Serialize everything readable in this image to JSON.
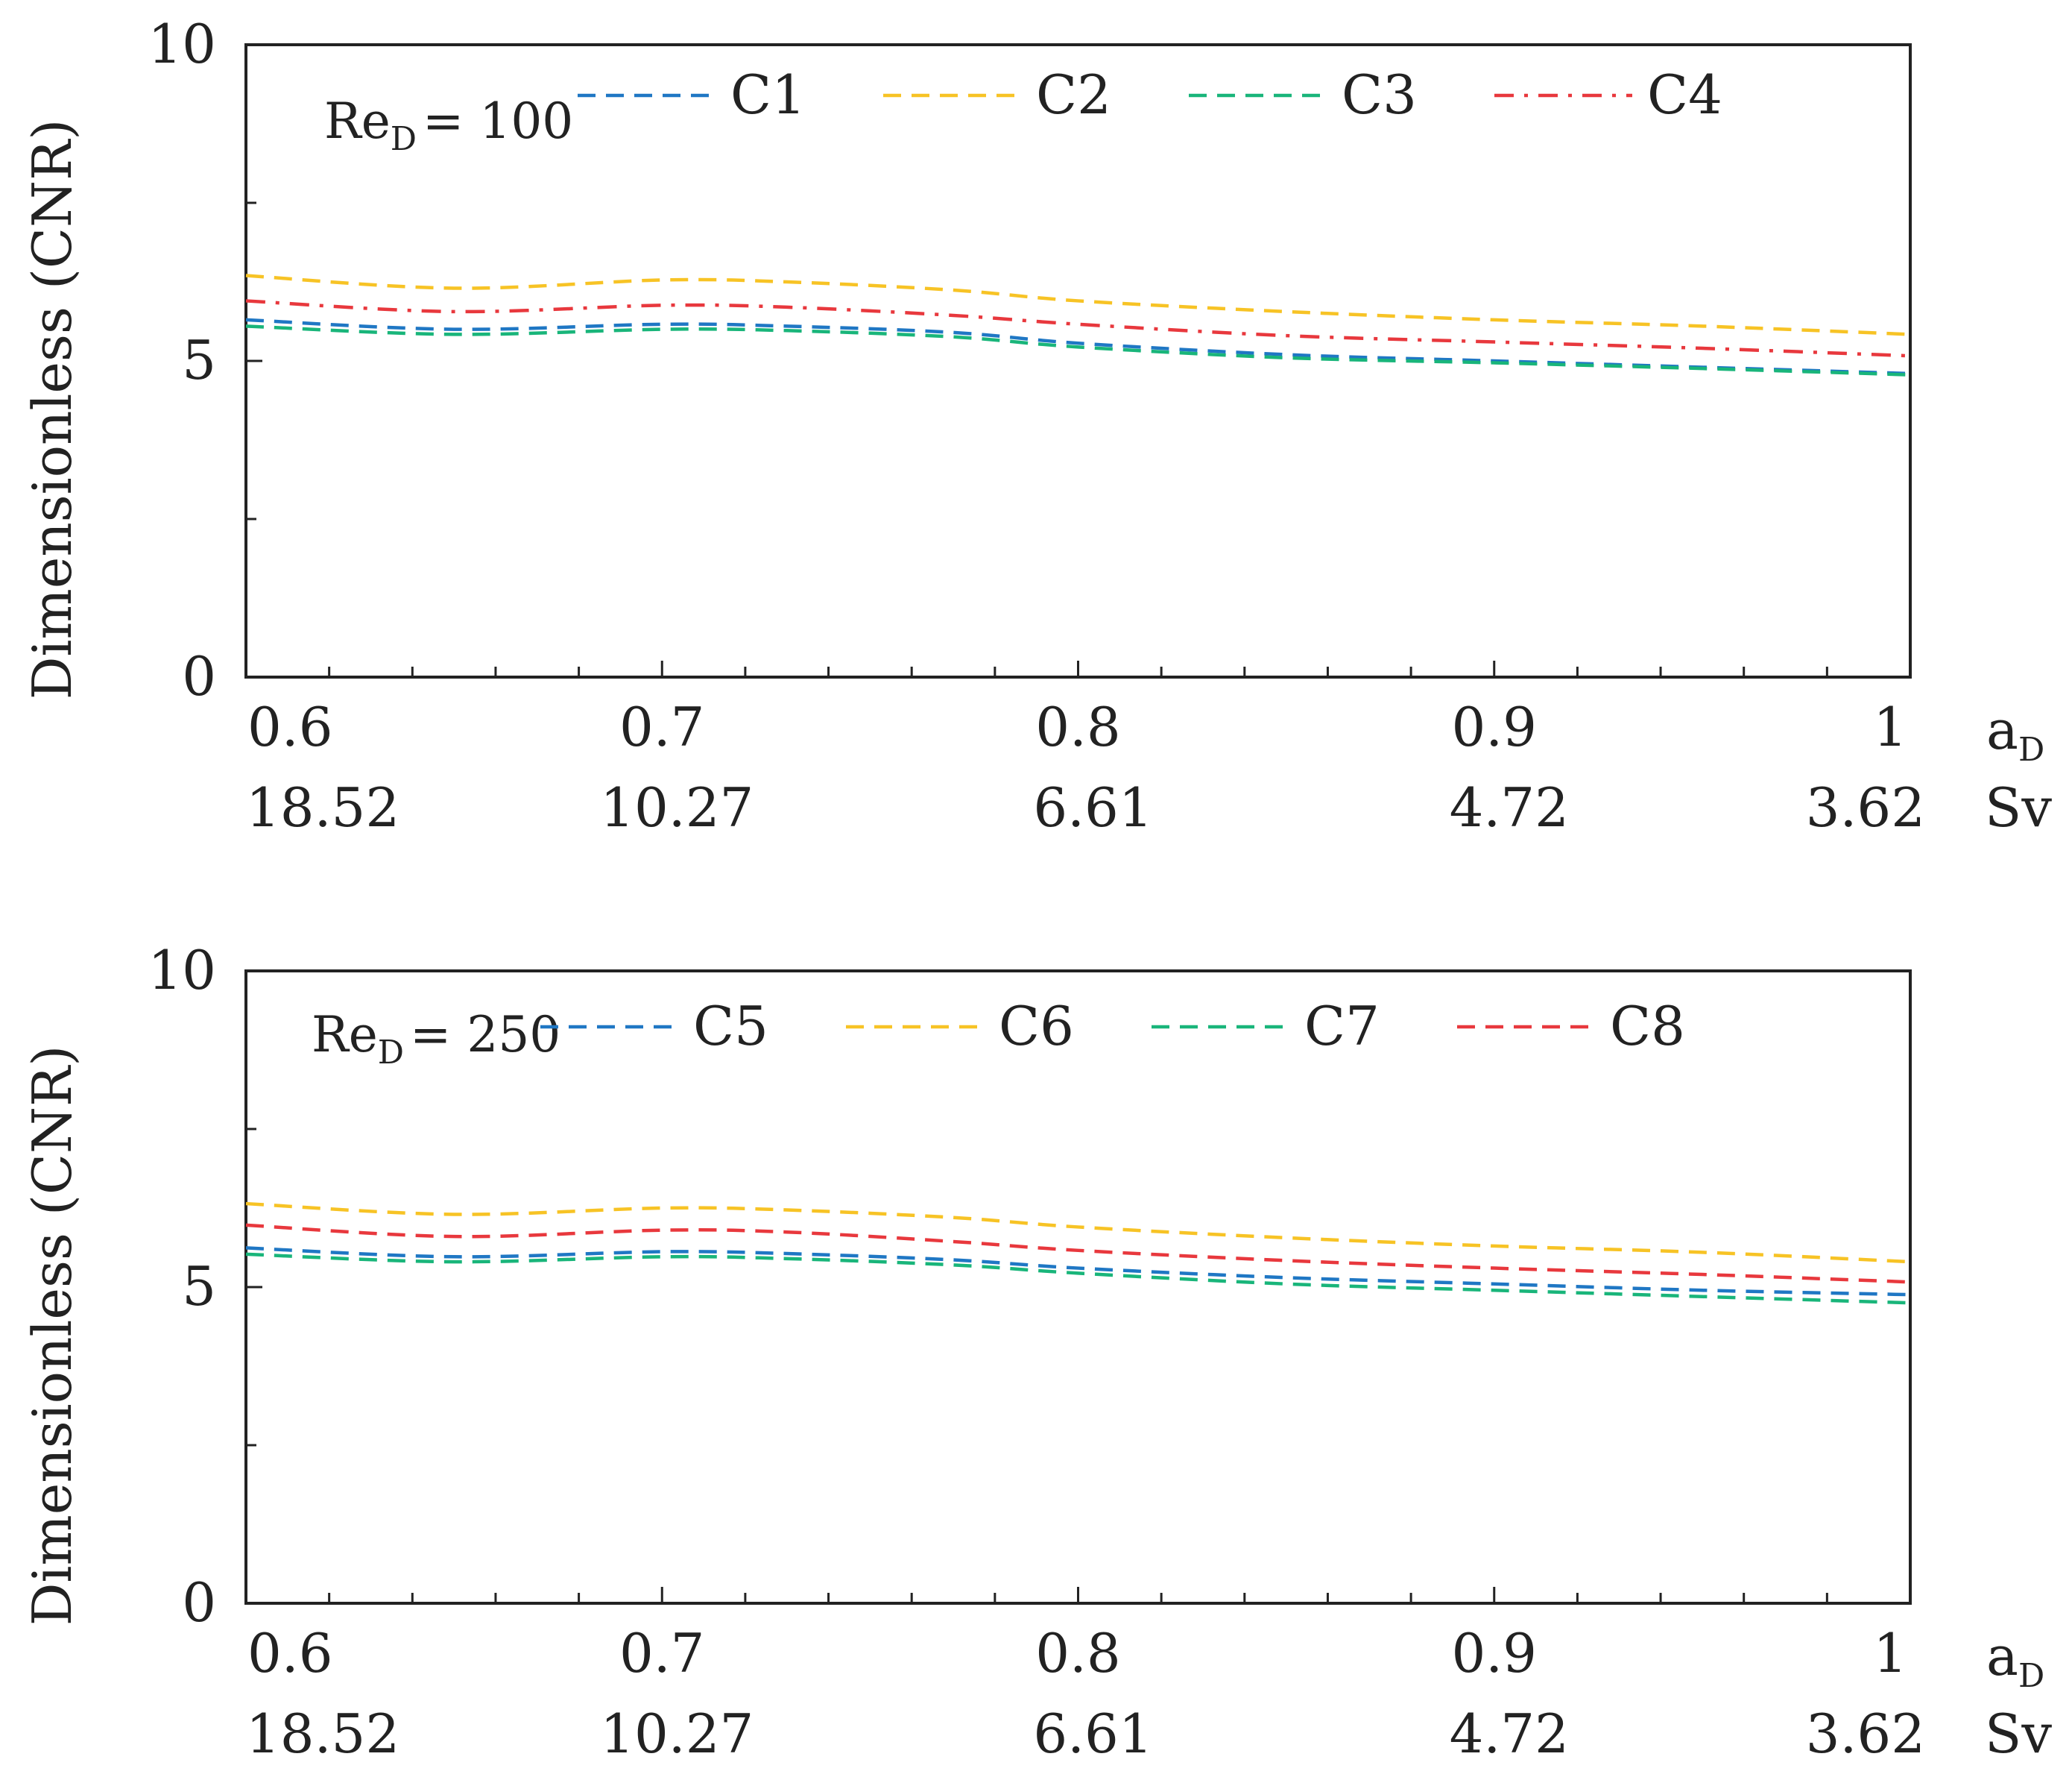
{
  "chart_data": [
    {
      "type": "line",
      "title": "",
      "annotation": {
        "base": "Re",
        "sub": "D",
        "value": "= 100"
      },
      "ylabel": "Dimensionless  (CNR)",
      "ylim": [
        0,
        10
      ],
      "yticks": [
        "0",
        "5",
        "10"
      ],
      "xlim": [
        0.6,
        1.0
      ],
      "xticks": [
        "0.6",
        "0.7",
        "0.8",
        "0.9",
        "1"
      ],
      "xlabel": {
        "base": "a",
        "sub": "D"
      },
      "secondary_ticks": [
        "18.52",
        "10.27",
        "6.61",
        "4.72",
        "3.62"
      ],
      "secondary_label": "Sv",
      "x": [
        0.6,
        0.65,
        0.7,
        0.73,
        0.77,
        0.8,
        0.85,
        0.9,
        0.95,
        1.0
      ],
      "series": [
        {
          "name": "C1",
          "color": "#1f77c4",
          "dash": "dashed",
          "values": [
            5.65,
            5.5,
            5.58,
            5.55,
            5.45,
            5.28,
            5.1,
            5.0,
            4.9,
            4.8
          ]
        },
        {
          "name": "C2",
          "color": "#f7c325",
          "dash": "dashed",
          "values": [
            6.35,
            6.15,
            6.28,
            6.25,
            6.12,
            5.95,
            5.78,
            5.65,
            5.55,
            5.42
          ]
        },
        {
          "name": "C3",
          "color": "#19b57a",
          "dash": "dashed",
          "values": [
            5.55,
            5.42,
            5.5,
            5.48,
            5.38,
            5.22,
            5.05,
            4.97,
            4.88,
            4.78
          ]
        },
        {
          "name": "C4",
          "color": "#e8383d",
          "dash": "dashdot",
          "values": [
            5.95,
            5.78,
            5.88,
            5.85,
            5.72,
            5.58,
            5.4,
            5.3,
            5.2,
            5.08
          ]
        }
      ]
    },
    {
      "type": "line",
      "title": "",
      "annotation": {
        "base": "Re",
        "sub": "D",
        "value": "= 250"
      },
      "ylabel": "Dimensionless  (CNR)",
      "ylim": [
        0,
        10
      ],
      "yticks": [
        "0",
        "5",
        "10"
      ],
      "xlim": [
        0.6,
        1.0
      ],
      "xticks": [
        "0.6",
        "0.7",
        "0.8",
        "0.9",
        "1"
      ],
      "xlabel": {
        "base": "a",
        "sub": "D"
      },
      "secondary_ticks": [
        "18.52",
        "10.27",
        "6.61",
        "4.72",
        "3.62"
      ],
      "secondary_label": "Sv",
      "x": [
        0.6,
        0.65,
        0.7,
        0.73,
        0.77,
        0.8,
        0.85,
        0.9,
        0.95,
        1.0
      ],
      "series": [
        {
          "name": "C5",
          "color": "#1f77c4",
          "dash": "dashed",
          "values": [
            5.62,
            5.48,
            5.56,
            5.53,
            5.43,
            5.3,
            5.15,
            5.05,
            4.95,
            4.88
          ]
        },
        {
          "name": "C6",
          "color": "#f7c325",
          "dash": "dashed",
          "values": [
            6.32,
            6.15,
            6.25,
            6.22,
            6.1,
            5.95,
            5.78,
            5.65,
            5.55,
            5.4
          ]
        },
        {
          "name": "C7",
          "color": "#19b57a",
          "dash": "dashed",
          "values": [
            5.52,
            5.4,
            5.48,
            5.45,
            5.35,
            5.22,
            5.05,
            4.95,
            4.85,
            4.75
          ]
        },
        {
          "name": "C8",
          "color": "#e8383d",
          "dash": "dashed",
          "values": [
            5.98,
            5.8,
            5.9,
            5.87,
            5.72,
            5.58,
            5.42,
            5.3,
            5.2,
            5.08
          ]
        }
      ]
    }
  ]
}
